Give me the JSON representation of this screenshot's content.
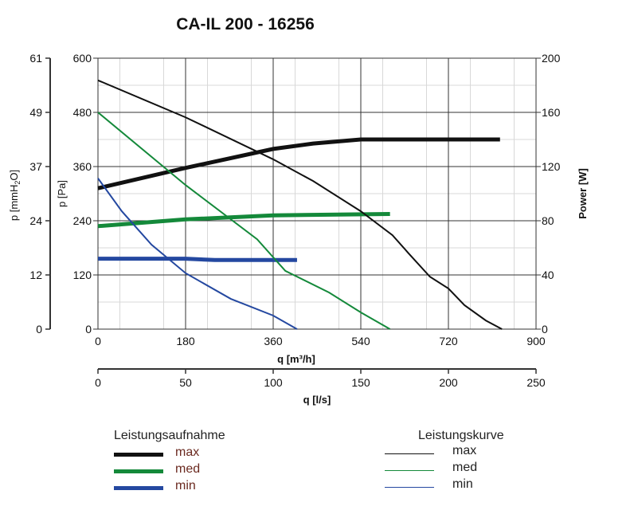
{
  "chart_data": {
    "type": "line",
    "title": "CA-IL 200 - 16256",
    "xlabel": "q [m³/h]",
    "xlabel2": "q [l/s]",
    "ylabel_left_outer": "p [mmH2O]",
    "ylabel_left": "p [Pa]",
    "ylabel_right": "Power [W]",
    "xlim": [
      0,
      900
    ],
    "ylim": [
      0,
      600
    ],
    "y2lim": [
      0,
      200
    ],
    "xlim2": [
      0,
      250
    ],
    "x_ticks": [
      "0",
      "180",
      "360",
      "540",
      "720",
      "900"
    ],
    "x2_ticks": [
      "0",
      "50",
      "100",
      "150",
      "200",
      "250"
    ],
    "y_ticks": [
      "0",
      "120",
      "240",
      "360",
      "480",
      "600"
    ],
    "y_mm_ticks": [
      "0",
      "12",
      "24",
      "37",
      "49",
      "61"
    ],
    "y2_ticks": [
      "0",
      "40",
      "80",
      "120",
      "160",
      "200"
    ],
    "grid": true,
    "colors": {
      "max": "#111111",
      "med": "#14893a",
      "min": "#2448a0"
    },
    "pressure_series": [
      {
        "name": "max",
        "x": [
          0,
          180,
          360,
          442,
          540,
          605,
          638,
          682,
          720,
          753,
          797,
          830
        ],
        "y": [
          551,
          469,
          376,
          328,
          261,
          208,
          168,
          116,
          90,
          53,
          19,
          0
        ]
      },
      {
        "name": "med",
        "x": [
          0,
          180,
          327,
          385,
          475,
          540,
          600
        ],
        "y": [
          480,
          319,
          199,
          129,
          81,
          37,
          0
        ]
      },
      {
        "name": "min",
        "x": [
          0,
          49,
          110,
          180,
          273,
          360,
          409
        ],
        "y": [
          334,
          261,
          187,
          124,
          67,
          30,
          0
        ]
      }
    ],
    "power_series": [
      {
        "name": "max",
        "x": [
          0,
          180,
          360,
          442,
          540,
          570,
          826
        ],
        "y": [
          104,
          119,
          133,
          137,
          140,
          140,
          140
        ]
      },
      {
        "name": "med",
        "x": [
          0,
          180,
          360,
          600
        ],
        "y": [
          76,
          81,
          84,
          85
        ]
      },
      {
        "name": "min",
        "x": [
          0,
          180,
          240,
          409
        ],
        "y": [
          52,
          52,
          51,
          51
        ]
      }
    ]
  },
  "legend": {
    "power_title": "Leistungsaufnahme",
    "curve_title": "Leistungskurve",
    "items": [
      "max",
      "med",
      "min"
    ]
  }
}
